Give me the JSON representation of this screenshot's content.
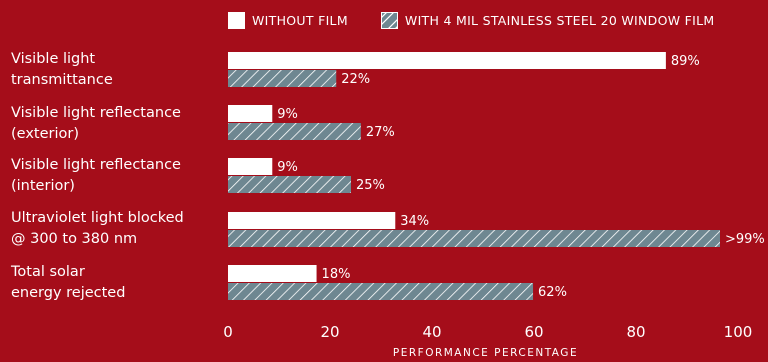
{
  "chart_data": {
    "type": "bar",
    "orientation": "horizontal",
    "categories": [
      [
        "Visible light",
        "transmittance"
      ],
      [
        "Visible light reflectance",
        "(exterior)"
      ],
      [
        "Visible light reflectance",
        "(interior)"
      ],
      [
        "Ultraviolet light blocked",
        "@ 300 to 380 nm"
      ],
      [
        "Total solar",
        "energy rejected"
      ]
    ],
    "series": [
      {
        "name": "WITHOUT FILM",
        "values": [
          89,
          9,
          9,
          34,
          18
        ],
        "labels": [
          "89%",
          "9%",
          "9%",
          "34%",
          "18%"
        ],
        "color": "#ffffff",
        "pattern": "solid"
      },
      {
        "name": "WITH 4 MIL STAINLESS STEEL 20  WINDOW FILM",
        "values": [
          22,
          27,
          25,
          100,
          62
        ],
        "labels": [
          "22%",
          "27%",
          "25%",
          ">99%",
          "62%"
        ],
        "color": "#6e8791",
        "pattern": "hatch"
      }
    ],
    "xlim": [
      0,
      100
    ],
    "xticks": [
      0,
      20,
      40,
      60,
      80,
      100
    ],
    "xlabel": "PERFORMANCE PERCENTAGE",
    "ylabel": "",
    "title": "",
    "legend_position": "top",
    "grid": false
  },
  "colors": {
    "background": "#a50d1a",
    "text": "#ffffff",
    "hatch_fill": "#6e8791"
  }
}
